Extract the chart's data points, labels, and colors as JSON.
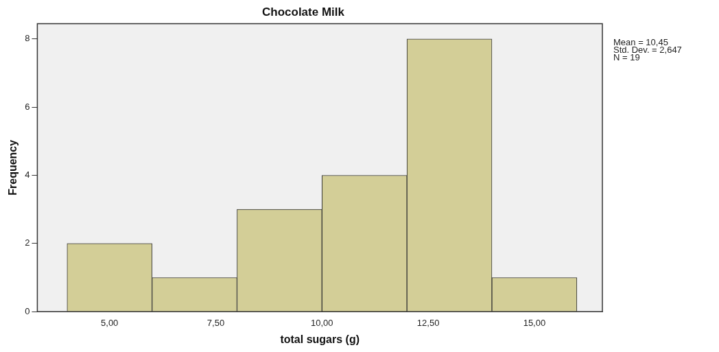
{
  "chart_data": {
    "type": "histogram",
    "title": "Chocolate Milk",
    "xlabel": "total sugars (g)",
    "ylabel": "Frequency",
    "bins": [
      4,
      6,
      8,
      10,
      12,
      14,
      16
    ],
    "values": [
      2,
      1,
      3,
      4,
      8,
      1
    ],
    "color": "#d3ce97",
    "xlim": [
      3.3,
      16.6
    ],
    "xticks": [
      {
        "value": 5,
        "label": "5,00"
      },
      {
        "value": 7.5,
        "label": "7,50"
      },
      {
        "value": 10,
        "label": "10,00"
      },
      {
        "value": 12.5,
        "label": "12,50"
      },
      {
        "value": 15,
        "label": "15,00"
      }
    ],
    "ylim": [
      0,
      8.45
    ],
    "yticks": [
      0,
      2,
      4,
      6,
      8
    ],
    "grid": false,
    "legend": false,
    "annotations": [
      "Mean = 10,45",
      "Std. Dev. = 2,647",
      "N = 19"
    ]
  }
}
